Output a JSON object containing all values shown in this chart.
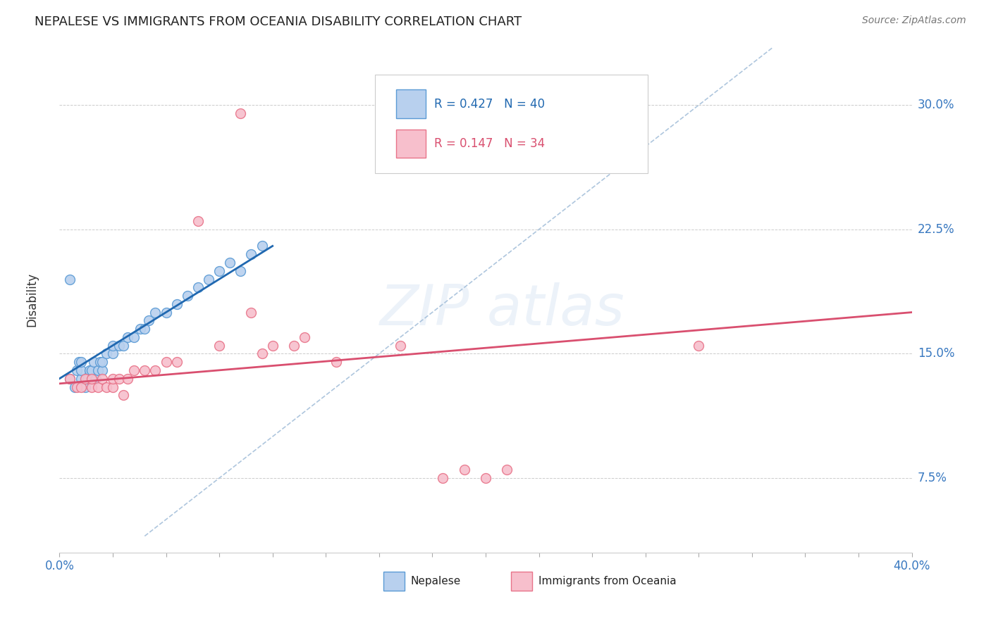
{
  "title": "NEPALESE VS IMMIGRANTS FROM OCEANIA DISABILITY CORRELATION CHART",
  "source": "Source: ZipAtlas.com",
  "ylabel": "Disability",
  "ylabel_ticks": [
    "7.5%",
    "15.0%",
    "22.5%",
    "30.0%"
  ],
  "ylabel_tick_vals": [
    0.075,
    0.15,
    0.225,
    0.3
  ],
  "xlim": [
    0.0,
    0.4
  ],
  "ylim": [
    0.03,
    0.335
  ],
  "legend_blue_R": "R = 0.427",
  "legend_blue_N": "N = 40",
  "legend_pink_R": "R = 0.147",
  "legend_pink_N": "N = 34",
  "legend_blue_label": "Nepalese",
  "legend_pink_label": "Immigrants from Oceania",
  "blue_fill": "#b8d0ee",
  "pink_fill": "#f7bfcc",
  "blue_edge": "#5b9bd5",
  "pink_edge": "#e8748a",
  "blue_line_color": "#2068b0",
  "pink_line_color": "#d94f6f",
  "diag_line_color": "#a0bcd8",
  "blue_points_x": [
    0.005,
    0.007,
    0.008,
    0.009,
    0.01,
    0.01,
    0.01,
    0.012,
    0.013,
    0.014,
    0.015,
    0.015,
    0.016,
    0.017,
    0.018,
    0.019,
    0.02,
    0.02,
    0.022,
    0.025,
    0.025,
    0.028,
    0.03,
    0.032,
    0.035,
    0.038,
    0.04,
    0.042,
    0.045,
    0.05,
    0.055,
    0.06,
    0.065,
    0.07,
    0.075,
    0.08,
    0.085,
    0.09,
    0.095,
    0.005
  ],
  "blue_points_y": [
    0.135,
    0.13,
    0.14,
    0.145,
    0.135,
    0.14,
    0.145,
    0.13,
    0.135,
    0.14,
    0.135,
    0.14,
    0.145,
    0.135,
    0.14,
    0.145,
    0.14,
    0.145,
    0.15,
    0.15,
    0.155,
    0.155,
    0.155,
    0.16,
    0.16,
    0.165,
    0.165,
    0.17,
    0.175,
    0.175,
    0.18,
    0.185,
    0.19,
    0.195,
    0.2,
    0.205,
    0.2,
    0.21,
    0.215,
    0.195
  ],
  "pink_points_x": [
    0.005,
    0.008,
    0.01,
    0.012,
    0.015,
    0.015,
    0.018,
    0.02,
    0.022,
    0.025,
    0.025,
    0.028,
    0.03,
    0.032,
    0.035,
    0.04,
    0.045,
    0.05,
    0.055,
    0.065,
    0.075,
    0.085,
    0.09,
    0.095,
    0.1,
    0.11,
    0.115,
    0.13,
    0.16,
    0.19,
    0.21,
    0.3,
    0.18,
    0.2
  ],
  "pink_points_y": [
    0.135,
    0.13,
    0.13,
    0.135,
    0.13,
    0.135,
    0.13,
    0.135,
    0.13,
    0.13,
    0.135,
    0.135,
    0.125,
    0.135,
    0.14,
    0.14,
    0.14,
    0.145,
    0.145,
    0.23,
    0.155,
    0.295,
    0.175,
    0.15,
    0.155,
    0.155,
    0.16,
    0.145,
    0.155,
    0.08,
    0.08,
    0.155,
    0.075,
    0.075
  ],
  "blue_line_x": [
    0.0,
    0.1
  ],
  "blue_line_y": [
    0.135,
    0.215
  ],
  "pink_line_x": [
    0.0,
    0.4
  ],
  "pink_line_y": [
    0.132,
    0.175
  ],
  "diag_line_x": [
    0.04,
    0.335
  ],
  "diag_line_y": [
    0.04,
    0.335
  ]
}
